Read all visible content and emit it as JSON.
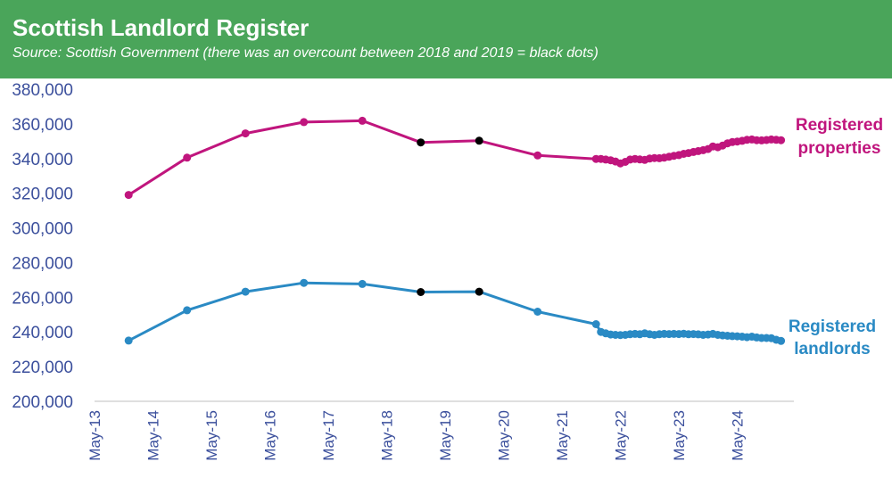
{
  "header": {
    "title": "Scottish Landlord Register",
    "subtitle": "Source: Scottish Government (there was an overcount between 2018 and 2019 = black dots)"
  },
  "colors": {
    "header_bg": "#4aa55a",
    "properties": "#c0157d",
    "landlords": "#2a8ac4",
    "overcount_dot": "#000000",
    "axis_text": "#3b4f9c"
  },
  "chart_data": {
    "type": "line",
    "title": "Scottish Landlord Register",
    "x_ticks": [
      "May-13",
      "May-14",
      "May-15",
      "May-16",
      "May-17",
      "May-18",
      "May-19",
      "May-20",
      "May-21",
      "May-22",
      "May-23",
      "May-24"
    ],
    "ylim": [
      200000,
      380000
    ],
    "y_ticks": [
      "200,000",
      "220,000",
      "240,000",
      "260,000",
      "280,000",
      "300,000",
      "320,000",
      "340,000",
      "360,000",
      "380,000"
    ],
    "grid": false,
    "series": [
      {
        "name": "Registered properties",
        "label_lines": [
          "Registered",
          "properties"
        ],
        "color": "#c0157d",
        "points": [
          {
            "x": "2013-12-01",
            "y": 319000
          },
          {
            "x": "2014-12-01",
            "y": 340500
          },
          {
            "x": "2015-12-01",
            "y": 354500
          },
          {
            "x": "2016-12-01",
            "y": 361000
          },
          {
            "x": "2017-12-01",
            "y": 361800
          },
          {
            "x": "2018-12-01",
            "y": 349300,
            "overcount": true
          },
          {
            "x": "2019-12-01",
            "y": 350300,
            "overcount": true
          },
          {
            "x": "2020-12-01",
            "y": 341800
          },
          {
            "x": "2021-12-01",
            "y": 339800
          },
          {
            "x": "2022-01-01",
            "y": 339800
          },
          {
            "x": "2022-02-01",
            "y": 339400
          },
          {
            "x": "2022-03-01",
            "y": 339000
          },
          {
            "x": "2022-04-01",
            "y": 338300
          },
          {
            "x": "2022-05-01",
            "y": 337200
          },
          {
            "x": "2022-06-01",
            "y": 338100
          },
          {
            "x": "2022-07-01",
            "y": 339400
          },
          {
            "x": "2022-08-01",
            "y": 339800
          },
          {
            "x": "2022-09-01",
            "y": 339500
          },
          {
            "x": "2022-10-01",
            "y": 339200
          },
          {
            "x": "2022-11-01",
            "y": 340000
          },
          {
            "x": "2022-12-01",
            "y": 340300
          },
          {
            "x": "2023-01-01",
            "y": 340200
          },
          {
            "x": "2023-02-01",
            "y": 340500
          },
          {
            "x": "2023-03-01",
            "y": 341000
          },
          {
            "x": "2023-04-01",
            "y": 341600
          },
          {
            "x": "2023-05-01",
            "y": 342000
          },
          {
            "x": "2023-06-01",
            "y": 342700
          },
          {
            "x": "2023-07-01",
            "y": 343200
          },
          {
            "x": "2023-08-01",
            "y": 343800
          },
          {
            "x": "2023-09-01",
            "y": 344300
          },
          {
            "x": "2023-10-01",
            "y": 344800
          },
          {
            "x": "2023-11-01",
            "y": 345500
          },
          {
            "x": "2023-12-01",
            "y": 347000
          },
          {
            "x": "2024-01-01",
            "y": 346500
          },
          {
            "x": "2024-02-01",
            "y": 347500
          },
          {
            "x": "2024-03-01",
            "y": 348800
          },
          {
            "x": "2024-04-01",
            "y": 349500
          },
          {
            "x": "2024-05-01",
            "y": 349800
          },
          {
            "x": "2024-06-01",
            "y": 350200
          },
          {
            "x": "2024-07-01",
            "y": 350800
          },
          {
            "x": "2024-08-01",
            "y": 351000
          },
          {
            "x": "2024-09-01",
            "y": 350600
          },
          {
            "x": "2024-10-01",
            "y": 350500
          },
          {
            "x": "2024-11-01",
            "y": 350700
          },
          {
            "x": "2024-12-01",
            "y": 351000
          },
          {
            "x": "2025-01-01",
            "y": 350800
          },
          {
            "x": "2025-02-01",
            "y": 350600
          }
        ]
      },
      {
        "name": "Registered landlords",
        "label_lines": [
          "Registered",
          "landlords"
        ],
        "color": "#2a8ac4",
        "points": [
          {
            "x": "2013-12-01",
            "y": 235000
          },
          {
            "x": "2014-12-01",
            "y": 252500
          },
          {
            "x": "2015-12-01",
            "y": 263200
          },
          {
            "x": "2016-12-01",
            "y": 268300
          },
          {
            "x": "2017-12-01",
            "y": 267700
          },
          {
            "x": "2018-12-01",
            "y": 263000,
            "overcount": true
          },
          {
            "x": "2019-12-01",
            "y": 263200,
            "overcount": true
          },
          {
            "x": "2020-12-01",
            "y": 251700
          },
          {
            "x": "2021-12-01",
            "y": 244500
          },
          {
            "x": "2022-01-01",
            "y": 240000
          },
          {
            "x": "2022-02-01",
            "y": 239200
          },
          {
            "x": "2022-03-01",
            "y": 238500
          },
          {
            "x": "2022-04-01",
            "y": 238300
          },
          {
            "x": "2022-05-01",
            "y": 238200
          },
          {
            "x": "2022-06-01",
            "y": 238300
          },
          {
            "x": "2022-07-01",
            "y": 238700
          },
          {
            "x": "2022-08-01",
            "y": 238900
          },
          {
            "x": "2022-09-01",
            "y": 238700
          },
          {
            "x": "2022-10-01",
            "y": 239200
          },
          {
            "x": "2022-11-01",
            "y": 238700
          },
          {
            "x": "2022-12-01",
            "y": 238300
          },
          {
            "x": "2023-01-01",
            "y": 238700
          },
          {
            "x": "2023-02-01",
            "y": 238900
          },
          {
            "x": "2023-03-01",
            "y": 238800
          },
          {
            "x": "2023-04-01",
            "y": 238900
          },
          {
            "x": "2023-05-01",
            "y": 238800
          },
          {
            "x": "2023-06-01",
            "y": 239000
          },
          {
            "x": "2023-07-01",
            "y": 238700
          },
          {
            "x": "2023-08-01",
            "y": 238800
          },
          {
            "x": "2023-09-01",
            "y": 238600
          },
          {
            "x": "2023-10-01",
            "y": 238300
          },
          {
            "x": "2023-11-01",
            "y": 238500
          },
          {
            "x": "2023-12-01",
            "y": 238900
          },
          {
            "x": "2024-01-01",
            "y": 238300
          },
          {
            "x": "2024-02-01",
            "y": 238000
          },
          {
            "x": "2024-03-01",
            "y": 237800
          },
          {
            "x": "2024-04-01",
            "y": 237600
          },
          {
            "x": "2024-05-01",
            "y": 237500
          },
          {
            "x": "2024-06-01",
            "y": 237300
          },
          {
            "x": "2024-07-01",
            "y": 237000
          },
          {
            "x": "2024-08-01",
            "y": 237300
          },
          {
            "x": "2024-09-01",
            "y": 236800
          },
          {
            "x": "2024-10-01",
            "y": 236500
          },
          {
            "x": "2024-11-01",
            "y": 236500
          },
          {
            "x": "2024-12-01",
            "y": 236400
          },
          {
            "x": "2025-01-01",
            "y": 235500
          },
          {
            "x": "2025-02-01",
            "y": 234800
          }
        ]
      }
    ]
  }
}
